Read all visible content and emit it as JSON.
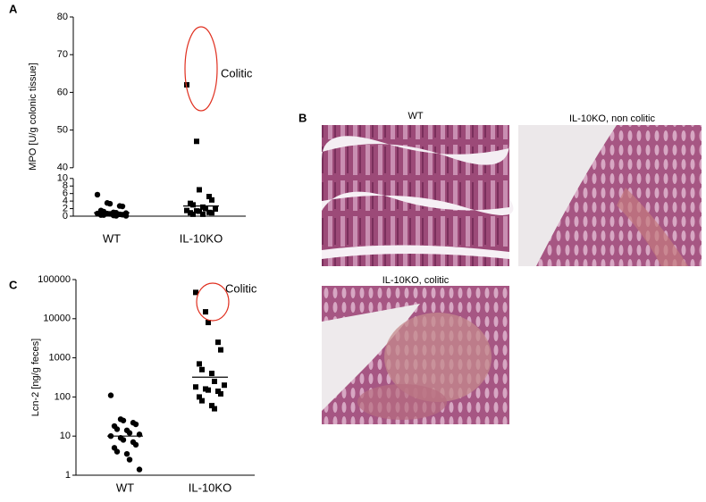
{
  "chart_data": [
    {
      "type": "strip",
      "panel_label": "A",
      "y_label": "MPO [U/g colonic tissue]",
      "categories": [
        "WT",
        "IL-10KO"
      ],
      "series": [
        {
          "marker": "circle",
          "color": "#000000",
          "values": [
            5.7,
            3.5,
            3.3,
            2.7,
            2.6,
            1.5,
            1.2,
            1.0,
            0.9,
            0.8,
            0.7,
            0.7,
            0.6,
            0.5,
            0.4,
            0.3,
            0.3,
            0.2,
            0.1,
            0.1
          ],
          "mean": 0.9
        },
        {
          "marker": "square",
          "color": "#000000",
          "values": [
            62,
            47,
            7.0,
            5.2,
            4.3,
            3.4,
            3.0,
            2.4,
            2.0,
            1.9,
            1.5,
            1.4,
            1.3,
            1.0,
            0.9,
            0.9,
            0.5,
            0.5
          ],
          "mean": 2.7
        }
      ],
      "ylim": [
        0,
        80
      ],
      "axis_break": [
        10,
        40
      ],
      "yticks": [
        0,
        2,
        4,
        6,
        8,
        10,
        40,
        50,
        60,
        70,
        80
      ],
      "annotation": "Colitic"
    },
    {
      "type": "strip",
      "panel_label": "C",
      "y_label": "Lcn-2 [ng/g feces]",
      "log_scale": true,
      "categories": [
        "WT",
        "IL-10KO"
      ],
      "series": [
        {
          "marker": "circle",
          "color": "#000000",
          "values": [
            110,
            27,
            25,
            22,
            20,
            18,
            15,
            14,
            12,
            11,
            10,
            9,
            8,
            7,
            6,
            5,
            4,
            3.5,
            2.5,
            1.4
          ],
          "mean": 10
        },
        {
          "marker": "square",
          "color": "#000000",
          "values": [
            47000,
            15000,
            8000,
            2500,
            1600,
            700,
            500,
            400,
            250,
            200,
            180,
            160,
            150,
            140,
            120,
            100,
            80,
            60,
            50
          ],
          "mean": 320
        }
      ],
      "ylim": [
        1,
        100000
      ],
      "yticks": [
        1,
        10,
        100,
        1000,
        10000,
        100000
      ],
      "annotation": "Colitic"
    }
  ],
  "panel_b": {
    "label": "B",
    "images": [
      {
        "caption": "WT"
      },
      {
        "caption": "IL-10KO, non colitic"
      },
      {
        "caption": "IL-10KO, colitic"
      }
    ]
  }
}
